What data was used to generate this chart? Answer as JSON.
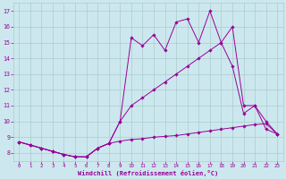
{
  "bg_color": "#cce8ee",
  "line_color": "#990099",
  "grid_color": "#aacccc",
  "xlabel": "Windchill (Refroidissement éolien,°C)",
  "xlim": [
    -0.5,
    23.5
  ],
  "ylim": [
    7.5,
    17.5
  ],
  "xticks": [
    0,
    1,
    2,
    3,
    4,
    5,
    6,
    7,
    8,
    9,
    10,
    11,
    12,
    13,
    14,
    15,
    16,
    17,
    18,
    19,
    20,
    21,
    22,
    23
  ],
  "yticks": [
    8,
    9,
    10,
    11,
    12,
    13,
    14,
    15,
    16,
    17
  ],
  "line1_x": [
    0,
    1,
    2,
    3,
    4,
    5,
    6,
    7,
    8,
    9,
    10,
    11,
    12,
    13,
    14,
    15,
    16,
    17,
    18,
    19,
    20,
    21,
    22,
    23
  ],
  "line1_y": [
    8.7,
    8.5,
    8.3,
    8.1,
    7.9,
    7.75,
    7.75,
    8.3,
    8.6,
    8.75,
    8.85,
    8.9,
    9.0,
    9.05,
    9.1,
    9.2,
    9.3,
    9.4,
    9.5,
    9.6,
    9.7,
    9.8,
    9.85,
    9.2
  ],
  "line2_x": [
    0,
    1,
    2,
    3,
    4,
    5,
    6,
    7,
    8,
    9,
    10,
    11,
    12,
    13,
    14,
    15,
    16,
    17,
    18,
    19,
    20,
    21,
    22,
    23
  ],
  "line2_y": [
    8.7,
    8.5,
    8.3,
    8.1,
    7.9,
    7.75,
    7.75,
    8.3,
    8.6,
    10.0,
    11.0,
    11.5,
    12.0,
    12.5,
    13.0,
    13.5,
    14.0,
    14.5,
    15.0,
    13.5,
    10.5,
    11.0,
    10.0,
    9.2
  ],
  "line3_x": [
    0,
    1,
    2,
    3,
    4,
    5,
    6,
    7,
    8,
    9,
    10,
    11,
    12,
    13,
    14,
    15,
    16,
    17,
    18,
    19,
    20,
    21,
    22,
    23
  ],
  "line3_y": [
    8.7,
    8.5,
    8.3,
    8.1,
    7.9,
    7.75,
    7.75,
    8.3,
    8.6,
    10.0,
    15.3,
    14.8,
    15.5,
    14.5,
    16.3,
    16.5,
    15.0,
    17.0,
    15.0,
    16.0,
    11.0,
    11.0,
    9.5,
    9.2
  ]
}
